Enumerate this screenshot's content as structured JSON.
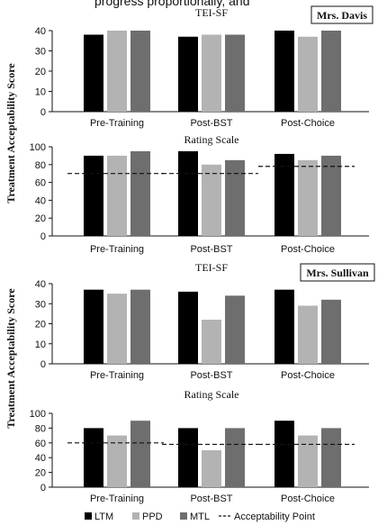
{
  "top_clipped_text": "progress proportionally, and",
  "colors": {
    "LTM": "#000000",
    "PPD": "#b3b3b3",
    "MTL": "#6e6e6e"
  },
  "legend": {
    "items": [
      {
        "label": "LTM",
        "color": "#000000"
      },
      {
        "label": "PPD",
        "color": "#b3b3b3"
      },
      {
        "label": "MTL",
        "color": "#6e6e6e"
      }
    ],
    "acceptability_label": "Acceptability Point"
  },
  "ylabel": "Treatment Acceptability Score",
  "teachers": [
    {
      "name": "Mrs. Davis"
    },
    {
      "name": "Mrs. Sullivan"
    }
  ],
  "chart_data": [
    {
      "type": "bar",
      "teacher": "Mrs. Davis",
      "title": "TEI-SF",
      "categories": [
        "Pre-Training",
        "Post-BST",
        "Post-Choice"
      ],
      "ylim": [
        0,
        40
      ],
      "yticks": [
        0,
        10,
        20,
        30,
        40
      ],
      "series": [
        {
          "name": "LTM",
          "values": [
            38,
            37,
            40
          ]
        },
        {
          "name": "PPD",
          "values": [
            40,
            38,
            37
          ]
        },
        {
          "name": "MTL",
          "values": [
            40,
            38,
            40
          ]
        }
      ],
      "acceptability": []
    },
    {
      "type": "bar",
      "teacher": "Mrs. Davis",
      "title": "Rating Scale",
      "categories": [
        "Pre-Training",
        "Post-BST",
        "Post-Choice"
      ],
      "ylim": [
        0,
        100
      ],
      "yticks": [
        0,
        20,
        40,
        60,
        80,
        100
      ],
      "series": [
        {
          "name": "LTM",
          "values": [
            90,
            95,
            92
          ]
        },
        {
          "name": "PPD",
          "values": [
            90,
            80,
            85
          ]
        },
        {
          "name": "MTL",
          "values": [
            95,
            85,
            90
          ]
        }
      ],
      "acceptability": [
        70,
        70,
        78
      ]
    },
    {
      "type": "bar",
      "teacher": "Mrs. Sullivan",
      "title": "TEI-SF",
      "categories": [
        "Pre-Training",
        "Post-BST",
        "Post-Choice"
      ],
      "ylim": [
        0,
        40
      ],
      "yticks": [
        0,
        10,
        20,
        30,
        40
      ],
      "series": [
        {
          "name": "LTM",
          "values": [
            37,
            36,
            37
          ]
        },
        {
          "name": "PPD",
          "values": [
            35,
            22,
            29
          ]
        },
        {
          "name": "MTL",
          "values": [
            37,
            34,
            32
          ]
        }
      ],
      "acceptability": []
    },
    {
      "type": "bar",
      "teacher": "Mrs. Sullivan",
      "title": "Rating Scale",
      "categories": [
        "Pre-Training",
        "Post-BST",
        "Post-Choice"
      ],
      "ylim": [
        0,
        100
      ],
      "yticks": [
        0,
        20,
        40,
        60,
        80,
        100
      ],
      "series": [
        {
          "name": "LTM",
          "values": [
            80,
            80,
            90
          ]
        },
        {
          "name": "PPD",
          "values": [
            70,
            50,
            70
          ]
        },
        {
          "name": "MTL",
          "values": [
            90,
            80,
            80
          ]
        }
      ],
      "acceptability": [
        60,
        58,
        58
      ]
    }
  ]
}
